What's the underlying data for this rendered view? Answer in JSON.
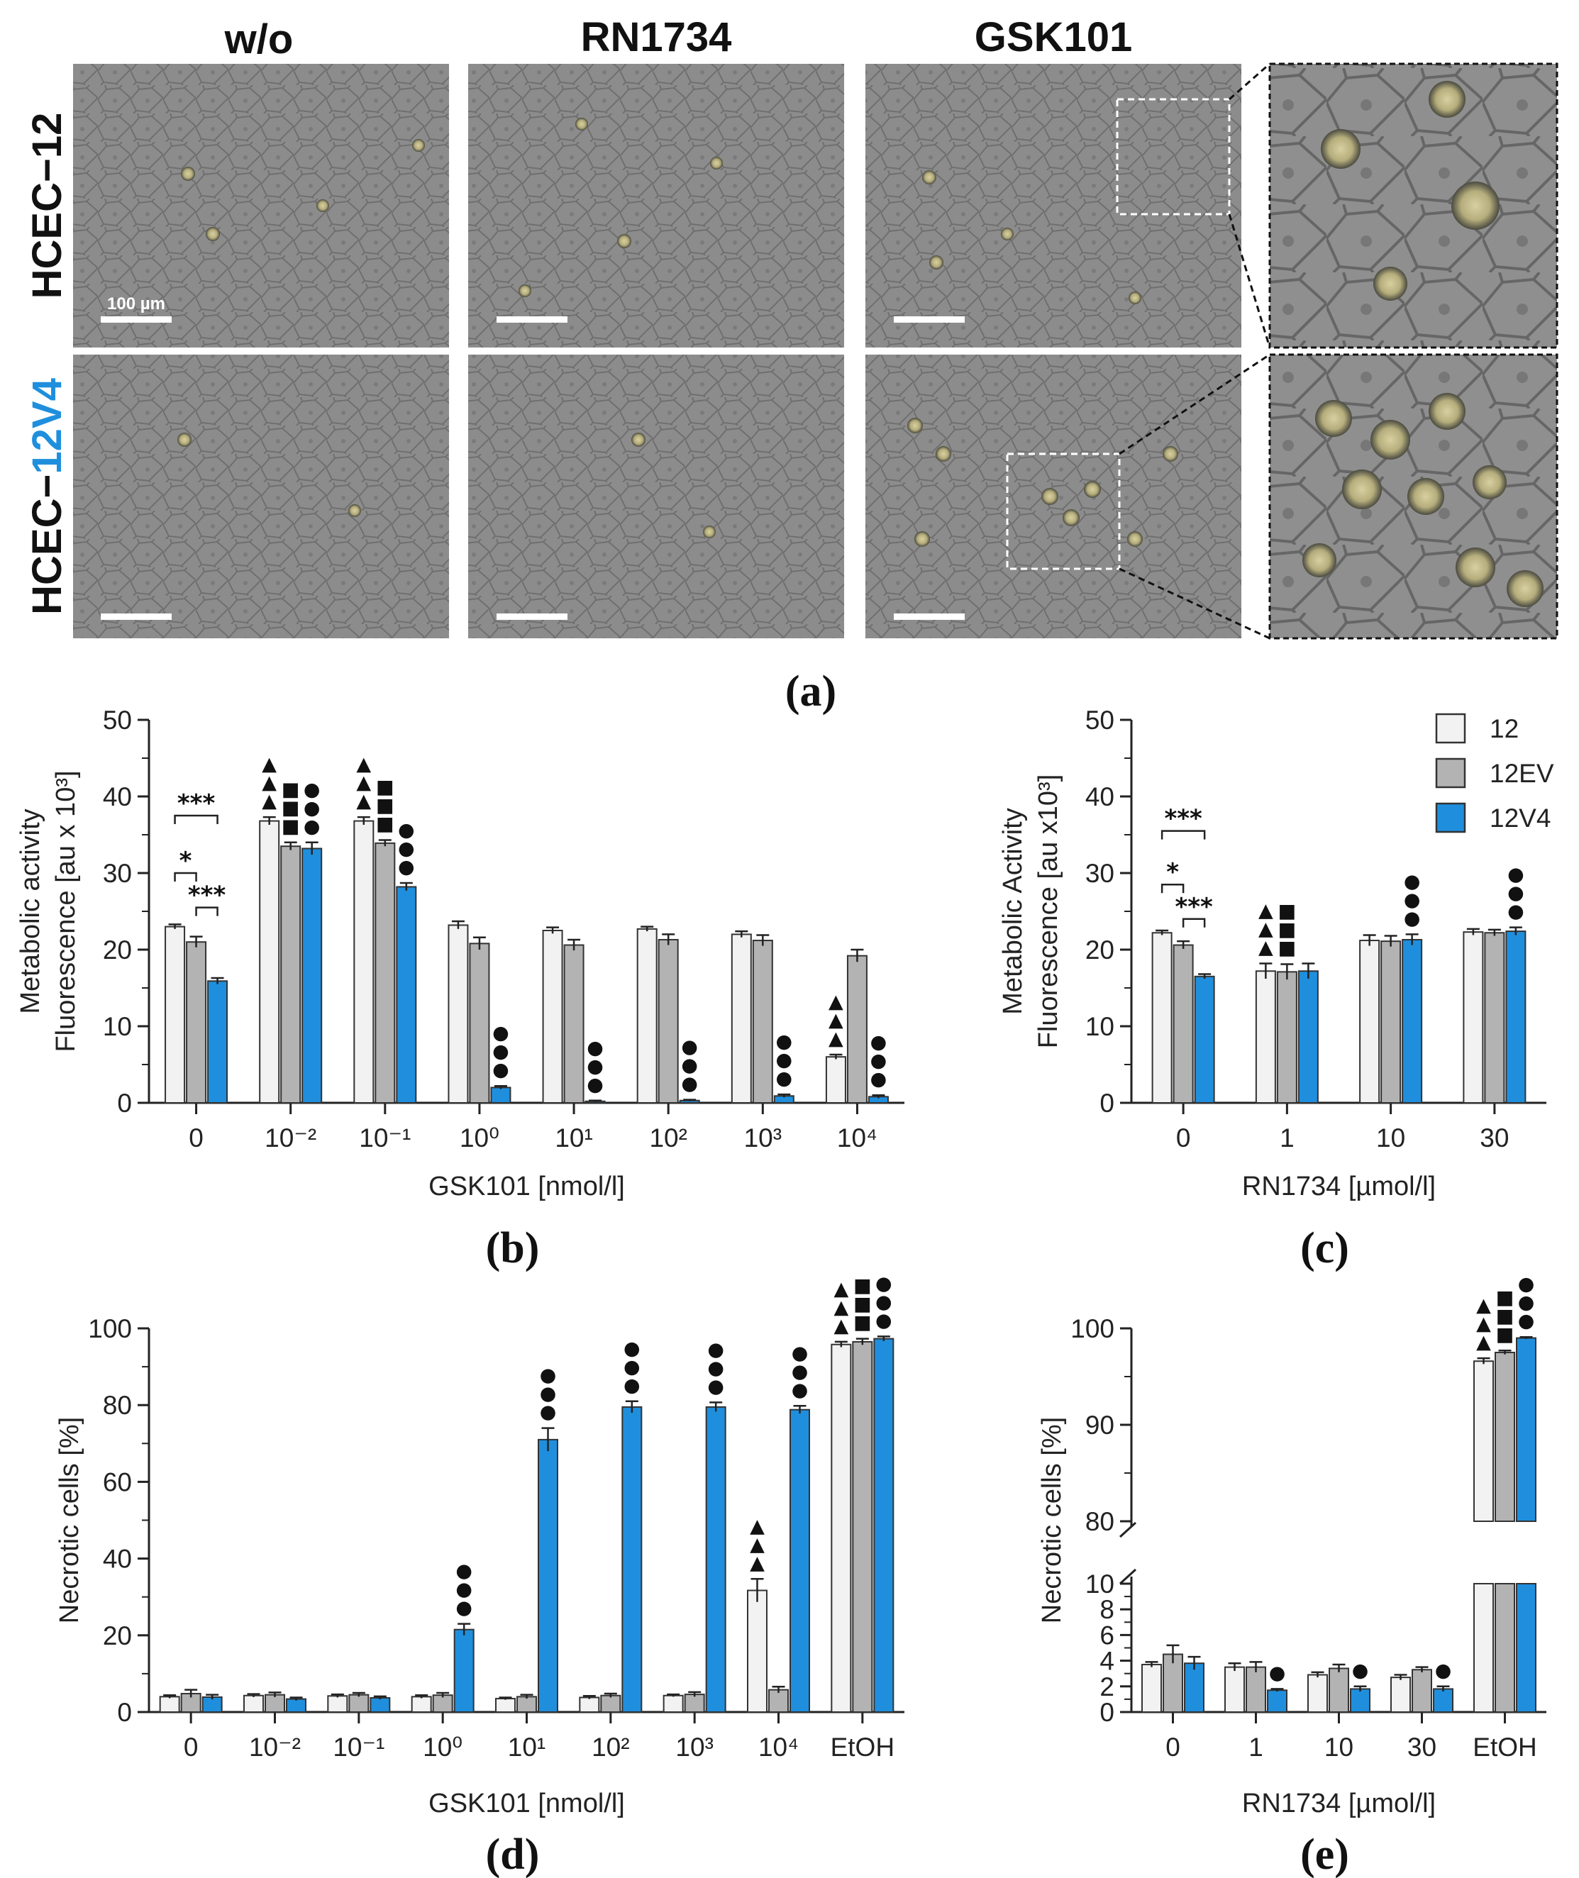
{
  "panel_a": {
    "label": "(a)",
    "columns": [
      "w/o",
      "RN1734",
      "GSK101"
    ],
    "rows": [
      {
        "prefix": "HCEC−",
        "suffix": "12",
        "suffix_color": "#111111"
      },
      {
        "prefix": "HCEC−",
        "suffix": "12V4",
        "suffix_color": "#1f8fdd"
      }
    ],
    "scale_bar_label": "100 µm"
  },
  "colors": {
    "12": "#f2f2f2",
    "12EV": "#b3b3b3",
    "12V4": "#1f8fdd"
  },
  "legend": [
    "12",
    "12EV",
    "12V4"
  ],
  "chart_data": [
    {
      "id": "b",
      "label": "(b)",
      "type": "bar",
      "xlabel": "GSK101 [nmol/l]",
      "ylabel_lines": [
        "Metabolic activity",
        "Fluorescence [au x 10³]"
      ],
      "ylim": [
        0,
        50
      ],
      "yticks": [
        "0",
        "10",
        "20",
        "30",
        "40",
        "50"
      ],
      "categories": [
        "0",
        "10⁻²",
        "10⁻¹",
        "10⁰",
        "10¹",
        "10²",
        "10³",
        "10⁴"
      ],
      "series": [
        {
          "name": "12",
          "values": [
            23.0,
            36.8,
            36.8,
            23.2,
            22.5,
            22.7,
            22.0,
            6.0
          ],
          "errors": [
            0.3,
            0.5,
            0.5,
            0.5,
            0.4,
            0.3,
            0.4,
            0.3
          ]
        },
        {
          "name": "12EV",
          "values": [
            21.0,
            33.5,
            33.9,
            20.8,
            20.6,
            21.3,
            21.2,
            19.2
          ],
          "errors": [
            0.7,
            0.5,
            0.4,
            0.8,
            0.7,
            0.7,
            0.7,
            0.8
          ]
        },
        {
          "name": "12V4",
          "values": [
            15.9,
            33.2,
            28.2,
            2.0,
            0.2,
            0.3,
            0.9,
            0.8
          ],
          "errors": [
            0.4,
            0.8,
            0.5,
            0.2,
            0.1,
            0.1,
            0.2,
            0.2
          ]
        }
      ],
      "brackets": [
        {
          "from": [
            0,
            "12"
          ],
          "to": [
            0,
            "12V4"
          ],
          "text": "***",
          "y": 37.5
        },
        {
          "from": [
            0,
            "12"
          ],
          "to": [
            0,
            "12EV"
          ],
          "text": "*",
          "y": 30.0
        },
        {
          "from": [
            0,
            "12EV"
          ],
          "to": [
            0,
            "12V4"
          ],
          "text": "***",
          "y": 25.5
        }
      ],
      "markers": [
        {
          "cat": 1,
          "series": "12",
          "symbol": "▲",
          "count": 3
        },
        {
          "cat": 1,
          "series": "12EV",
          "symbol": "■",
          "count": 3
        },
        {
          "cat": 1,
          "series": "12V4",
          "symbol": "●",
          "count": 3
        },
        {
          "cat": 2,
          "series": "12",
          "symbol": "▲",
          "count": 3
        },
        {
          "cat": 2,
          "series": "12EV",
          "symbol": "■",
          "count": 3
        },
        {
          "cat": 2,
          "series": "12V4",
          "symbol": "●",
          "count": 3
        },
        {
          "cat": 3,
          "series": "12V4",
          "symbol": "●",
          "count": 3
        },
        {
          "cat": 4,
          "series": "12V4",
          "symbol": "●",
          "count": 3
        },
        {
          "cat": 5,
          "series": "12V4",
          "symbol": "●",
          "count": 3
        },
        {
          "cat": 6,
          "series": "12V4",
          "symbol": "●",
          "count": 3
        },
        {
          "cat": 7,
          "series": "12",
          "symbol": "▲",
          "count": 3
        },
        {
          "cat": 7,
          "series": "12V4",
          "symbol": "●",
          "count": 3
        }
      ]
    },
    {
      "id": "c",
      "label": "(c)",
      "type": "bar",
      "xlabel": "RN1734 [µmol/l]",
      "ylabel_lines": [
        "Metabolic Activity",
        "Fluorescence [au x10³]"
      ],
      "ylim": [
        0,
        50
      ],
      "yticks": [
        "0",
        "10",
        "20",
        "30",
        "40",
        "50"
      ],
      "categories": [
        "0",
        "1",
        "10",
        "30"
      ],
      "legend_placement": "top-right",
      "series": [
        {
          "name": "12",
          "values": [
            22.2,
            17.2,
            21.2,
            22.3
          ],
          "errors": [
            0.3,
            1.0,
            0.7,
            0.4
          ]
        },
        {
          "name": "12EV",
          "values": [
            20.6,
            17.1,
            21.1,
            22.2
          ],
          "errors": [
            0.5,
            1.0,
            0.7,
            0.4
          ]
        },
        {
          "name": "12V4",
          "values": [
            16.5,
            17.2,
            21.3,
            22.4
          ],
          "errors": [
            0.3,
            1.0,
            0.7,
            0.5
          ]
        }
      ],
      "brackets": [
        {
          "from": [
            0,
            "12"
          ],
          "to": [
            0,
            "12V4"
          ],
          "text": "***",
          "y": 35.5
        },
        {
          "from": [
            0,
            "12"
          ],
          "to": [
            0,
            "12EV"
          ],
          "text": "*",
          "y": 28.5
        },
        {
          "from": [
            0,
            "12EV"
          ],
          "to": [
            0,
            "12V4"
          ],
          "text": "***",
          "y": 24.0
        }
      ],
      "markers": [
        {
          "cat": 1,
          "series": "12",
          "symbol": "▲",
          "count": 3
        },
        {
          "cat": 1,
          "series": "12EV",
          "symbol": "■",
          "count": 3
        },
        {
          "cat": 2,
          "series": "12V4",
          "symbol": "●",
          "count": 3
        },
        {
          "cat": 3,
          "series": "12V4",
          "symbol": "●",
          "count": 3
        }
      ]
    },
    {
      "id": "d",
      "label": "(d)",
      "type": "bar",
      "xlabel": "GSK101 [nmol/l]",
      "ylabel_lines": [
        "Necrotic cells [%]"
      ],
      "ylim": [
        0,
        100
      ],
      "yticks": [
        "0",
        "20",
        "40",
        "60",
        "80",
        "100"
      ],
      "categories": [
        "0",
        "10⁻²",
        "10⁻¹",
        "10⁰",
        "10¹",
        "10²",
        "10³",
        "10⁴",
        "EtOH"
      ],
      "series": [
        {
          "name": "12",
          "values": [
            4.0,
            4.3,
            4.2,
            4.0,
            3.5,
            3.8,
            4.3,
            31.7,
            95.8
          ],
          "errors": [
            0.4,
            0.4,
            0.4,
            0.4,
            0.3,
            0.4,
            0.3,
            3.0,
            0.7
          ]
        },
        {
          "name": "12EV",
          "values": [
            4.8,
            4.5,
            4.5,
            4.4,
            4.0,
            4.3,
            4.6,
            5.8,
            96.5
          ],
          "errors": [
            1.0,
            0.6,
            0.5,
            0.6,
            0.5,
            0.5,
            0.6,
            0.8,
            0.8
          ]
        },
        {
          "name": "12V4",
          "values": [
            3.9,
            3.4,
            3.7,
            21.5,
            71.0,
            79.5,
            79.5,
            78.8,
            97.3
          ],
          "errors": [
            0.6,
            0.4,
            0.4,
            1.5,
            3.0,
            1.5,
            1.2,
            1.0,
            0.6
          ]
        }
      ],
      "markers": [
        {
          "cat": 3,
          "series": "12V4",
          "symbol": "●",
          "count": 3
        },
        {
          "cat": 4,
          "series": "12V4",
          "symbol": "●",
          "count": 3
        },
        {
          "cat": 5,
          "series": "12V4",
          "symbol": "●",
          "count": 3
        },
        {
          "cat": 6,
          "series": "12V4",
          "symbol": "●",
          "count": 3
        },
        {
          "cat": 7,
          "series": "12",
          "symbol": "▲",
          "count": 3
        },
        {
          "cat": 7,
          "series": "12V4",
          "symbol": "●",
          "count": 3
        },
        {
          "cat": 8,
          "series": "12",
          "symbol": "▲",
          "count": 3
        },
        {
          "cat": 8,
          "series": "12EV",
          "symbol": "■",
          "count": 3
        },
        {
          "cat": 8,
          "series": "12V4",
          "symbol": "●",
          "count": 3
        }
      ]
    },
    {
      "id": "e",
      "label": "(e)",
      "type": "bar",
      "xlabel": "RN1734 [µmol/l]",
      "ylabel_lines": [
        "Necrotic cells [%]"
      ],
      "axis_break": {
        "lower": [
          0,
          10
        ],
        "upper": [
          80,
          100
        ]
      },
      "yticks_lower": [
        "0",
        "2",
        "4",
        "6",
        "8",
        "10"
      ],
      "yticks_upper": [
        "80",
        "90",
        "100"
      ],
      "categories": [
        "0",
        "1",
        "10",
        "30",
        "EtOH"
      ],
      "series": [
        {
          "name": "12",
          "values": [
            3.7,
            3.5,
            2.9,
            2.7,
            96.6
          ],
          "errors": [
            0.2,
            0.3,
            0.2,
            0.2,
            0.3
          ]
        },
        {
          "name": "12EV",
          "values": [
            4.5,
            3.5,
            3.4,
            3.3,
            97.5
          ],
          "errors": [
            0.7,
            0.4,
            0.3,
            0.2,
            0.2
          ]
        },
        {
          "name": "12V4",
          "values": [
            3.8,
            1.7,
            1.8,
            1.8,
            99.0
          ],
          "errors": [
            0.5,
            0.1,
            0.2,
            0.2,
            0.1
          ]
        }
      ],
      "markers": [
        {
          "cat": 1,
          "series": "12V4",
          "symbol": "●",
          "count": 1
        },
        {
          "cat": 2,
          "series": "12V4",
          "symbol": "●",
          "count": 1
        },
        {
          "cat": 3,
          "series": "12V4",
          "symbol": "●",
          "count": 1
        },
        {
          "cat": 4,
          "series": "12",
          "symbol": "▲",
          "count": 3
        },
        {
          "cat": 4,
          "series": "12EV",
          "symbol": "■",
          "count": 3
        },
        {
          "cat": 4,
          "series": "12V4",
          "symbol": "●",
          "count": 3
        }
      ]
    }
  ]
}
